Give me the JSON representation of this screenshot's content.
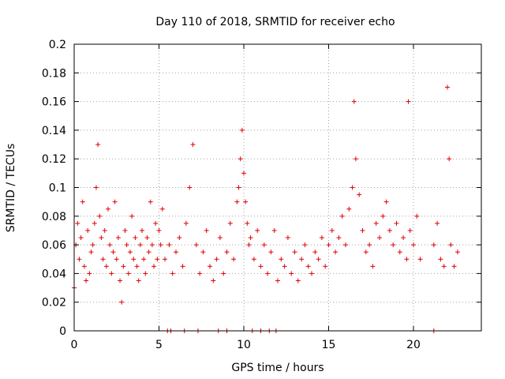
{
  "chart_data": {
    "type": "scatter",
    "title": "Day 110 of 2018, SRMTID for receiver echo",
    "xlabel": "GPS time / hours",
    "ylabel": "SRMTID / TECUs",
    "xlim": [
      0,
      24
    ],
    "ylim": [
      0,
      0.2
    ],
    "x_ticks": [
      0,
      5,
      10,
      15,
      20
    ],
    "x_tick_labels": [
      "0",
      "5",
      "10",
      "15",
      "20"
    ],
    "y_ticks": [
      0,
      0.02,
      0.04,
      0.06,
      0.08,
      0.1,
      0.12,
      0.14,
      0.16,
      0.18,
      0.2
    ],
    "y_tick_labels": [
      "0",
      "0.02",
      "0.04",
      "0.06",
      "0.08",
      "0.1",
      "0.12",
      "0.14",
      "0.16",
      "0.18",
      "0.2"
    ],
    "grid": true,
    "marker": "plus",
    "color": "#e00000",
    "series": [
      {
        "name": "SRMTID",
        "x": [
          0.0,
          0.1,
          0.2,
          0.3,
          0.4,
          0.5,
          0.6,
          0.7,
          0.8,
          0.9,
          1.0,
          1.1,
          1.2,
          1.3,
          1.4,
          1.5,
          1.6,
          1.7,
          1.8,
          1.9,
          2.0,
          2.1,
          2.2,
          2.3,
          2.4,
          2.5,
          2.6,
          2.7,
          2.8,
          2.9,
          3.0,
          3.1,
          3.2,
          3.3,
          3.4,
          3.5,
          3.6,
          3.7,
          3.8,
          3.9,
          4.0,
          4.1,
          4.2,
          4.3,
          4.4,
          4.5,
          4.6,
          4.7,
          4.8,
          4.9,
          5.0,
          5.1,
          5.2,
          5.35,
          5.6,
          5.8,
          6.0,
          6.2,
          6.4,
          6.6,
          6.8,
          7.0,
          7.2,
          7.4,
          7.6,
          7.8,
          8.0,
          8.2,
          8.4,
          8.6,
          8.8,
          9.0,
          9.2,
          9.4,
          9.6,
          9.7,
          9.8,
          9.9,
          10.0,
          10.1,
          10.2,
          10.3,
          10.4,
          10.6,
          10.8,
          11.0,
          11.2,
          11.4,
          11.6,
          11.8,
          12.0,
          12.2,
          12.4,
          12.6,
          12.8,
          13.0,
          13.2,
          13.4,
          13.6,
          13.8,
          14.0,
          14.2,
          14.4,
          14.6,
          14.8,
          15.0,
          15.2,
          15.4,
          15.6,
          15.8,
          16.0,
          16.2,
          16.4,
          16.5,
          16.6,
          16.8,
          17.0,
          17.2,
          17.4,
          17.6,
          17.8,
          18.0,
          18.2,
          18.4,
          18.6,
          18.8,
          19.0,
          19.2,
          19.4,
          19.6,
          19.7,
          19.8,
          20.0,
          20.2,
          20.4,
          21.2,
          21.4,
          21.6,
          21.8,
          22.0,
          22.1,
          22.2,
          22.4,
          22.6
        ],
        "y": [
          0.03,
          0.06,
          0.075,
          0.05,
          0.065,
          0.09,
          0.045,
          0.035,
          0.07,
          0.04,
          0.055,
          0.06,
          0.075,
          0.1,
          0.13,
          0.08,
          0.065,
          0.05,
          0.07,
          0.045,
          0.085,
          0.06,
          0.04,
          0.055,
          0.09,
          0.05,
          0.065,
          0.035,
          0.02,
          0.045,
          0.07,
          0.06,
          0.04,
          0.055,
          0.08,
          0.05,
          0.065,
          0.045,
          0.035,
          0.06,
          0.07,
          0.05,
          0.04,
          0.065,
          0.055,
          0.09,
          0.06,
          0.045,
          0.075,
          0.05,
          0.07,
          0.06,
          0.085,
          0.05,
          0.06,
          0.04,
          0.055,
          0.065,
          0.045,
          0.075,
          0.1,
          0.13,
          0.06,
          0.04,
          0.055,
          0.07,
          0.045,
          0.035,
          0.05,
          0.065,
          0.04,
          0.055,
          0.075,
          0.05,
          0.09,
          0.1,
          0.12,
          0.14,
          0.11,
          0.09,
          0.075,
          0.06,
          0.065,
          0.05,
          0.07,
          0.045,
          0.06,
          0.04,
          0.055,
          0.07,
          0.035,
          0.05,
          0.045,
          0.065,
          0.04,
          0.055,
          0.035,
          0.05,
          0.06,
          0.045,
          0.04,
          0.055,
          0.05,
          0.065,
          0.045,
          0.06,
          0.07,
          0.055,
          0.065,
          0.08,
          0.06,
          0.085,
          0.1,
          0.16,
          0.12,
          0.095,
          0.07,
          0.055,
          0.06,
          0.045,
          0.075,
          0.065,
          0.08,
          0.09,
          0.07,
          0.06,
          0.075,
          0.055,
          0.065,
          0.05,
          0.16,
          0.07,
          0.06,
          0.08,
          0.05,
          0.06,
          0.075,
          0.05,
          0.045,
          0.17,
          0.12,
          0.06,
          0.045,
          0.055
        ]
      }
    ],
    "zero_values_x": [
      5.5,
      5.7,
      6.5,
      7.3,
      8.5,
      9.0,
      10.5,
      11.0,
      11.5,
      11.9,
      21.2
    ]
  }
}
